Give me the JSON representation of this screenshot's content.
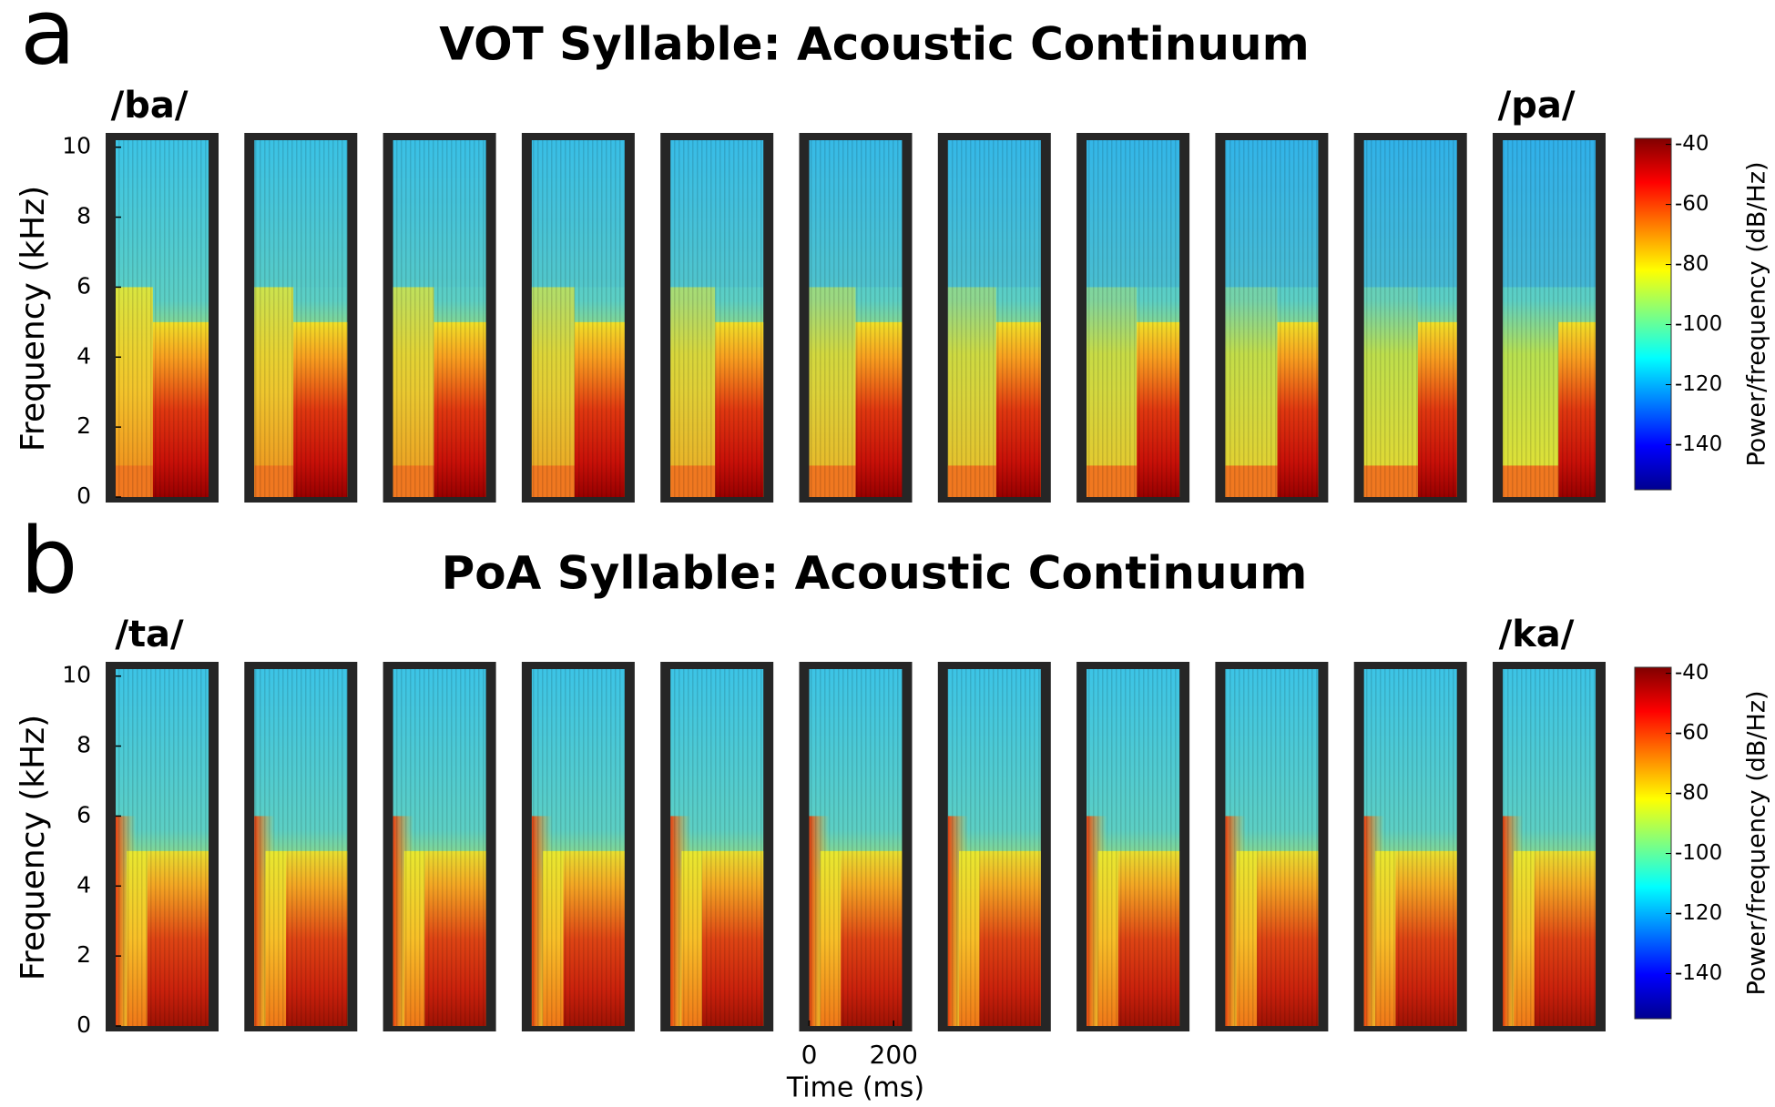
{
  "chart_data": [
    {
      "type": "spectrogram",
      "panel_label": "a",
      "title": "VOT Syllable: Acoustic Continuum",
      "categories": [
        "/ba/",
        null,
        null,
        null,
        null,
        null,
        null,
        null,
        null,
        null,
        "/pa/"
      ],
      "ylabel": "Frequency (kHz)",
      "ylim": [
        0,
        10.2
      ],
      "yticks": [
        0,
        2,
        4,
        6,
        8,
        10
      ],
      "colorbar": {
        "label": "Power/frequency (dB/Hz)",
        "lim": [
          -155,
          -38
        ],
        "ticks": [
          -40,
          -60,
          -80,
          -100,
          -120,
          -140
        ]
      }
    },
    {
      "type": "spectrogram",
      "panel_label": "b",
      "title": "PoA Syllable: Acoustic Continuum",
      "categories": [
        "/ta/",
        null,
        null,
        null,
        null,
        null,
        null,
        null,
        null,
        null,
        "/ka/"
      ],
      "ylabel": "Frequency (kHz)",
      "ylim": [
        0,
        10.2
      ],
      "yticks": [
        0,
        2,
        4,
        6,
        8,
        10
      ],
      "xlabel": "Time (ms)",
      "xlim": [
        0,
        220
      ],
      "xticks": [
        0,
        200
      ],
      "colorbar": {
        "label": "Power/frequency (dB/Hz)",
        "lim": [
          -155,
          -38
        ],
        "ticks": [
          -40,
          -60,
          -80,
          -100,
          -120,
          -140
        ]
      }
    }
  ]
}
